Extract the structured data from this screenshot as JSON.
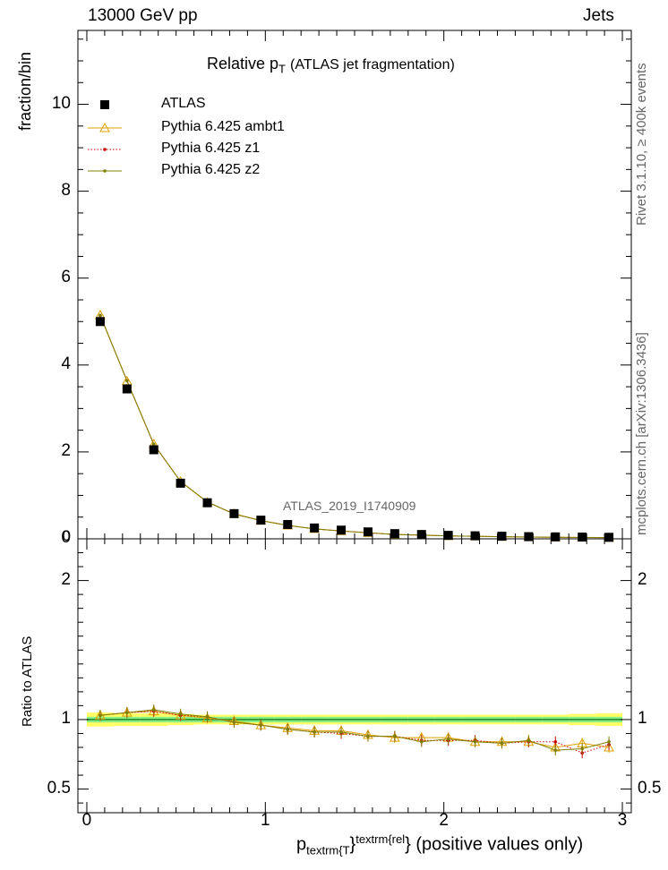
{
  "header": {
    "energy": "13000 GeV pp",
    "category": "Jets"
  },
  "side": {
    "rivet": "Rivet 3.1.10, ≥ 400k events",
    "mcplots": "mcplots.cern.ch [arXiv:1306.3436]"
  },
  "title": {
    "main": "Relative p",
    "sub": "T",
    "paren": "(ATLAS jet fragmentation)"
  },
  "watermark": "ATLAS_2019_I1740909",
  "colors": {
    "ambt1": "#e0a000",
    "z1": "#cc0000",
    "z2": "#7f7f00",
    "data": "#000000",
    "band_inner": "#88ee88",
    "band_outer": "#ffff66"
  },
  "chart_data": [
    {
      "type": "scatter",
      "title": "Relative p T (ATLAS jet fragmentation)",
      "ylabel": "fraction/bin",
      "xlim": [
        -0.05,
        3.05
      ],
      "ylim": [
        0,
        11.7
      ],
      "yticks": [
        0,
        2,
        4,
        6,
        8,
        10
      ],
      "yticklabels": [
        "0",
        "2",
        "4",
        "6",
        "8",
        "10"
      ],
      "x": [
        0.075,
        0.225,
        0.375,
        0.525,
        0.675,
        0.825,
        0.975,
        1.125,
        1.275,
        1.425,
        1.575,
        1.725,
        1.875,
        2.025,
        2.175,
        2.325,
        2.475,
        2.625,
        2.775,
        2.925
      ],
      "legend": [
        "ATLAS",
        "Pythia 6.425 ambt1",
        "Pythia 6.425 z1",
        "Pythia 6.425 z2"
      ],
      "series": [
        {
          "name": "ATLAS",
          "values": [
            5.0,
            3.45,
            2.05,
            1.28,
            0.83,
            0.58,
            0.43,
            0.33,
            0.25,
            0.2,
            0.16,
            0.12,
            0.1,
            0.08,
            0.07,
            0.06,
            0.05,
            0.045,
            0.04,
            0.035
          ]
        },
        {
          "name": "Pythia 6.425 ambt1",
          "values": [
            5.15,
            3.63,
            2.18,
            1.32,
            0.84,
            0.58,
            0.42,
            0.31,
            0.23,
            0.18,
            0.14,
            0.1,
            0.085,
            0.068,
            0.058,
            0.05,
            0.042,
            0.036,
            0.033,
            0.028
          ]
        },
        {
          "name": "Pythia 6.425 z1",
          "values": [
            5.14,
            3.64,
            2.17,
            1.32,
            0.85,
            0.57,
            0.42,
            0.31,
            0.23,
            0.18,
            0.14,
            0.1,
            0.085,
            0.068,
            0.058,
            0.05,
            0.042,
            0.036,
            0.031,
            0.028
          ]
        },
        {
          "name": "Pythia 6.425 z2",
          "values": [
            5.14,
            3.64,
            2.18,
            1.32,
            0.85,
            0.57,
            0.42,
            0.31,
            0.23,
            0.18,
            0.14,
            0.1,
            0.085,
            0.068,
            0.058,
            0.05,
            0.042,
            0.035,
            0.032,
            0.029
          ]
        }
      ]
    },
    {
      "type": "line",
      "title": "",
      "ylabel": "Ratio to ATLAS",
      "xlabel": "p",
      "xlabel_sub": "textrm{T",
      "xlabel_sup": "textrm{rel",
      "xlabel_tail": "} (positive values only)",
      "xlabel_mid": "}",
      "xlim": [
        -0.05,
        3.05
      ],
      "ylim": [
        0.33,
        2.3
      ],
      "xticks": [
        0,
        1,
        2,
        3
      ],
      "xticklabels": [
        "0",
        "1",
        "2",
        "3"
      ],
      "yticks": [
        0.5,
        1,
        2
      ],
      "yticklabels": [
        "0.5",
        "1",
        "2"
      ],
      "x": [
        0.075,
        0.225,
        0.375,
        0.525,
        0.675,
        0.825,
        0.975,
        1.125,
        1.275,
        1.425,
        1.575,
        1.725,
        1.875,
        2.025,
        2.175,
        2.325,
        2.475,
        2.625,
        2.775,
        2.925
      ],
      "band_inner": [
        0.02,
        0.02,
        0.02,
        0.02,
        0.02,
        0.02,
        0.02,
        0.02,
        0.02,
        0.02,
        0.02,
        0.02,
        0.02,
        0.02,
        0.02,
        0.02,
        0.02,
        0.02,
        0.02,
        0.02
      ],
      "band_outer": [
        0.05,
        0.045,
        0.045,
        0.04,
        0.035,
        0.035,
        0.035,
        0.035,
        0.035,
        0.035,
        0.035,
        0.035,
        0.035,
        0.035,
        0.035,
        0.035,
        0.035,
        0.035,
        0.04,
        0.045
      ],
      "series": [
        {
          "name": "Pythia 6.425 ambt1",
          "values": [
            1.03,
            1.05,
            1.06,
            1.03,
            1.01,
            0.99,
            0.96,
            0.94,
            0.92,
            0.92,
            0.89,
            0.87,
            0.87,
            0.87,
            0.84,
            0.84,
            0.84,
            0.8,
            0.83,
            0.8
          ]
        },
        {
          "name": "Pythia 6.425 z1",
          "values": [
            1.03,
            1.05,
            1.06,
            1.03,
            1.02,
            0.98,
            0.96,
            0.93,
            0.91,
            0.9,
            0.88,
            0.88,
            0.85,
            0.85,
            0.85,
            0.83,
            0.84,
            0.84,
            0.76,
            0.82
          ]
        },
        {
          "name": "Pythia 6.425 z2",
          "values": [
            1.03,
            1.05,
            1.07,
            1.04,
            1.02,
            0.98,
            0.96,
            0.93,
            0.91,
            0.91,
            0.88,
            0.88,
            0.84,
            0.86,
            0.84,
            0.83,
            0.85,
            0.78,
            0.79,
            0.84
          ]
        }
      ]
    }
  ]
}
